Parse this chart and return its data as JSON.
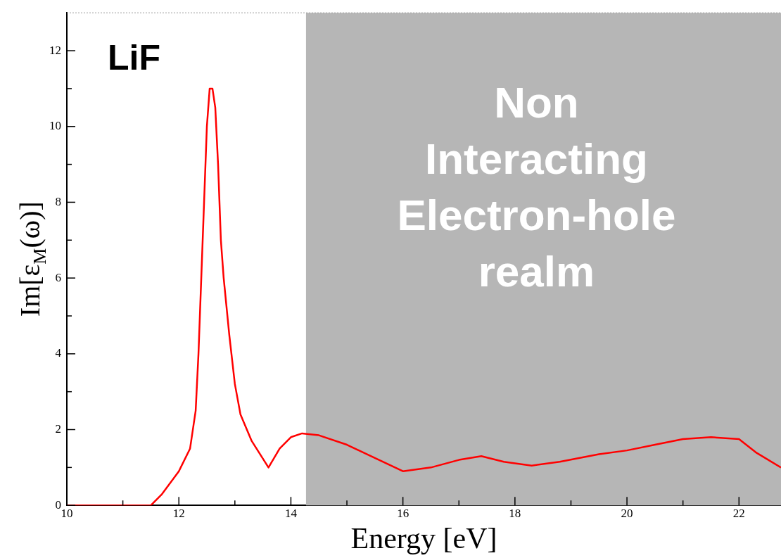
{
  "chart_data": {
    "type": "line",
    "xlabel": "Energy [eV]",
    "ylabel": "Im[ε$_{M}$(ω)]",
    "annotations": [
      "LiF"
    ],
    "xlim": [
      10,
      22.75
    ],
    "ylim": [
      0,
      13
    ],
    "xticks": [
      10,
      {
        "value": 11,
        "label": null
      },
      12,
      {
        "value": 13,
        "label": null
      },
      14,
      {
        "value": 15,
        "label": null
      },
      16,
      {
        "value": 17,
        "label": null
      },
      18,
      {
        "value": 19,
        "label": null
      },
      20,
      {
        "value": 21,
        "label": null
      },
      22
    ],
    "yticks": [
      0,
      {
        "value": 1,
        "label": null
      },
      2,
      {
        "value": 3,
        "label": null
      },
      4,
      {
        "value": 5,
        "label": null
      },
      6,
      {
        "value": 7,
        "label": null
      },
      8,
      {
        "value": 9,
        "label": null
      },
      10,
      {
        "value": 11,
        "label": null
      },
      12
    ],
    "bands": [
      {
        "axis": "x",
        "from": 14.27,
        "to": 22.75,
        "label": "Non\nInteracting\nElectron-hole\nrealm",
        "color": "#b6b6b6"
      }
    ],
    "marker": "none",
    "line_style": "solid",
    "series": [
      {
        "color": "#ff0000",
        "x": [
          10,
          11.5,
          11.7,
          12.0,
          12.2,
          12.3,
          12.35,
          12.4,
          12.45,
          12.5,
          12.55,
          12.6,
          12.65,
          12.7,
          12.75,
          12.8,
          12.9,
          13.0,
          13.1,
          13.3,
          13.6,
          13.8,
          14.0,
          14.2,
          14.5,
          15.0,
          15.5,
          16.0,
          16.5,
          17.0,
          17.4,
          17.8,
          18.3,
          18.8,
          19.5,
          20.0,
          20.5,
          21.0,
          21.5,
          22.0,
          22.3,
          22.75
        ],
        "values": [
          0,
          0,
          0.3,
          0.9,
          1.5,
          2.5,
          4,
          6,
          8,
          10,
          11.0,
          11.0,
          10.5,
          9,
          7,
          6,
          4.5,
          3.2,
          2.4,
          1.7,
          1.0,
          1.5,
          1.8,
          1.9,
          1.85,
          1.6,
          1.25,
          0.9,
          1.0,
          1.2,
          1.3,
          1.15,
          1.05,
          1.15,
          1.35,
          1.45,
          1.6,
          1.75,
          1.8,
          1.75,
          1.4,
          1.0
        ]
      }
    ]
  }
}
